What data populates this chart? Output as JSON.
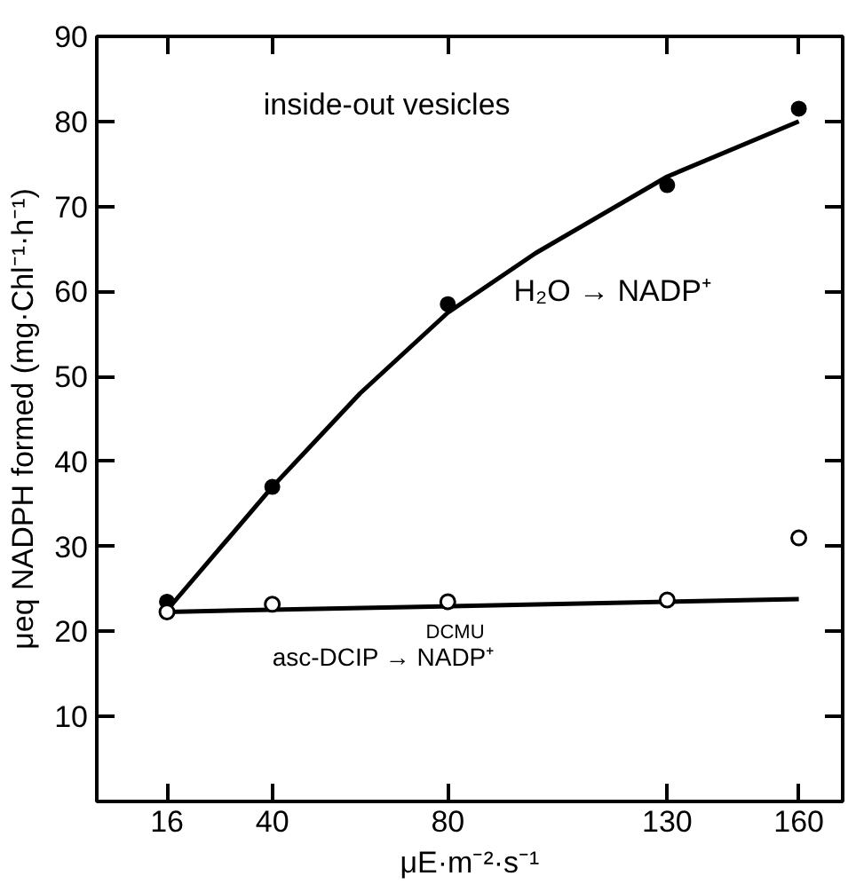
{
  "chart_data": {
    "type": "scatter",
    "xlabel": "μE·m⁻²·s⁻¹",
    "ylabel": "μeq NADPH formed (mg·Chl⁻¹·h⁻¹)",
    "xlim": [
      0,
      170
    ],
    "ylim": [
      0,
      90
    ],
    "xticks": [
      16,
      40,
      80,
      130,
      160
    ],
    "yticks": [
      10,
      20,
      30,
      40,
      50,
      60,
      70,
      80,
      90
    ],
    "grid": false,
    "annotations": [
      "inside-out vesicles",
      "DCMU"
    ],
    "series": [
      {
        "type": "line",
        "name": "H₂O → NADP⁺",
        "color": "#000000",
        "x": [
          16,
          40,
          60,
          80,
          100,
          130,
          160
        ],
        "values": [
          22.5,
          37,
          48,
          57.5,
          64.5,
          73.5,
          80
        ]
      },
      {
        "type": "line",
        "name": "asc-DCIP → NADP⁺",
        "color": "#000000",
        "x": [
          16,
          160
        ],
        "values": [
          22.3,
          23.8
        ]
      },
      {
        "marker": "circle",
        "color": "#000000",
        "x": [
          16,
          40,
          80,
          130,
          160
        ],
        "values": [
          23.5,
          37,
          58.5,
          72.5,
          81.5
        ]
      },
      {
        "marker": "circle_open",
        "color": "#000000",
        "x": [
          16,
          40,
          80,
          130,
          160
        ],
        "values": [
          22.3,
          23.2,
          23.5,
          23.7,
          31
        ]
      }
    ]
  }
}
